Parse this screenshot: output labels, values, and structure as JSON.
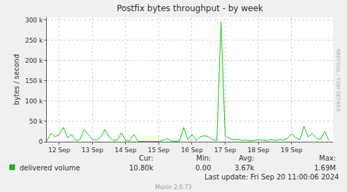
{
  "chart_data": {
    "type": "line",
    "title": "Postfix bytes throughput - by week",
    "y_label": "bytes / second",
    "categories": [
      null,
      null,
      null,
      "12 Sep",
      null,
      null,
      null,
      null,
      null,
      null,
      null,
      "13 Sep",
      null,
      null,
      null,
      null,
      null,
      null,
      null,
      "14 Sep",
      null,
      null,
      null,
      null,
      null,
      null,
      null,
      "15 Sep",
      null,
      null,
      null,
      null,
      null,
      null,
      null,
      "16 Sep",
      null,
      null,
      null,
      null,
      null,
      null,
      null,
      "17 Sep",
      null,
      null,
      null,
      null,
      null,
      null,
      null,
      "18 Sep",
      null,
      null,
      null,
      null,
      null,
      null,
      null,
      "19 Sep",
      null,
      null,
      null,
      null,
      null,
      null,
      null,
      null,
      null,
      null
    ],
    "series": [
      {
        "name": "delivered volume",
        "color": "#00cc00",
        "values": [
          2000,
          20000,
          12000,
          18000,
          35000,
          10000,
          18000,
          3000,
          5000,
          30000,
          18000,
          6000,
          4000,
          12000,
          30000,
          12000,
          3000,
          4000,
          22000,
          3000,
          2000,
          18000,
          1000,
          500,
          500,
          1000,
          500,
          1000,
          3000,
          8000,
          1500,
          1000,
          2000,
          35000,
          5000,
          18000,
          3000,
          12000,
          15000,
          12000,
          4000,
          3000,
          295000,
          15000,
          8000,
          5000,
          6000,
          3000,
          4000,
          2000,
          3000,
          5000,
          4000,
          2000,
          6000,
          3000,
          5000,
          4000,
          8000,
          20000,
          10000,
          5000,
          38000,
          12000,
          20000,
          8000,
          6000,
          25000,
          3000,
          null
        ],
        "stats": [
          {
            "label": "Cur:",
            "value": "10.80k"
          },
          {
            "label": "Min:",
            "value": "0.00"
          },
          {
            "label": "Avg:",
            "value": "3.67k"
          },
          {
            "label": "Max:",
            "value": "1.69M"
          }
        ]
      }
    ],
    "ylim": [
      0,
      306000
    ],
    "yticks": [
      0,
      {
        "value": 50000,
        "label": "50 k"
      },
      {
        "value": 100000,
        "label": "100 k"
      },
      {
        "value": 150000,
        "label": "150 k"
      },
      {
        "value": 200000,
        "label": "200 k"
      },
      {
        "value": 250000,
        "label": "250 k"
      },
      {
        "value": 300000,
        "label": "300 k"
      }
    ],
    "grid": true,
    "last_update": "Last update: Fri Sep 20 11:00:06 2024",
    "credit": "Munin 2.0.73",
    "watermark": "RRDTOOL / TOBI OETIKER"
  }
}
